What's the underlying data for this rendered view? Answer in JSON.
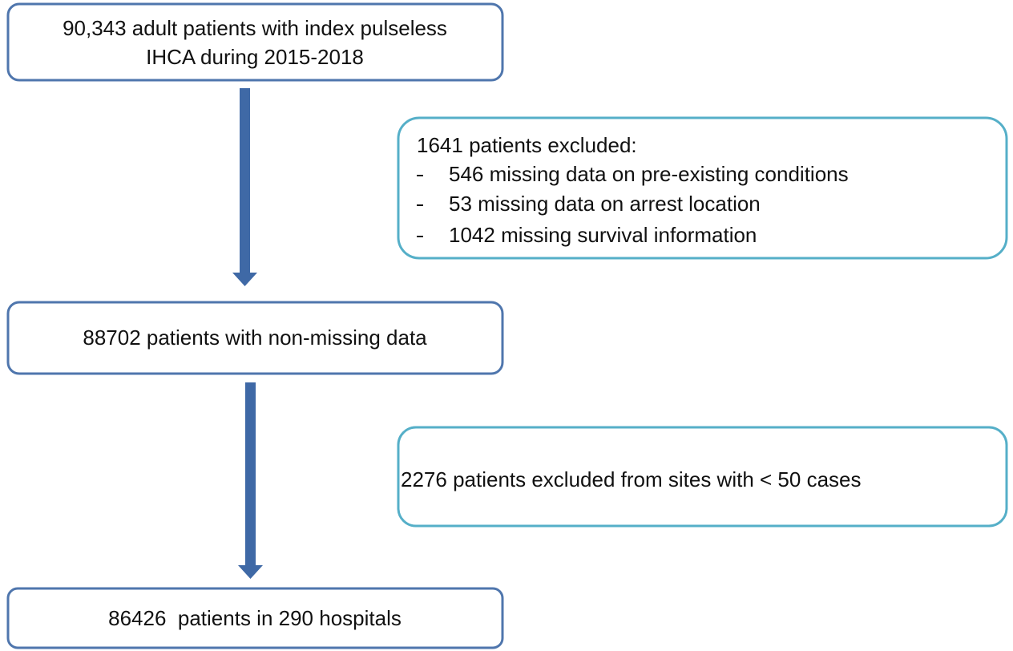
{
  "nodes": [
    {
      "lines": [
        "90,343 adult patients with index pulseless",
        "IHCA during 2015-2018"
      ]
    },
    {
      "lines": [
        "88702 patients with non-missing data"
      ]
    },
    {
      "lines": [
        "86426  patients in 290 hospitals"
      ]
    }
  ],
  "exclusions": [
    {
      "heading": "1641 patients excluded:",
      "items": [
        "546 missing data on pre-existing conditions",
        "53 missing data on arrest location",
        "1042 missing survival information"
      ]
    },
    {
      "heading": "2276 patients excluded from sites with < 50 cases",
      "items": []
    }
  ]
}
